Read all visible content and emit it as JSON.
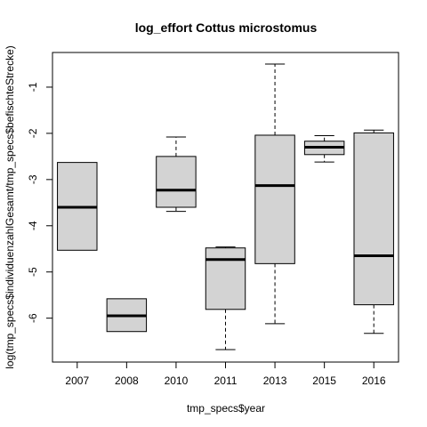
{
  "chart_data": {
    "type": "boxplot",
    "title": "log_effort Cottus microstomus",
    "xlabel": "tmp_specs$year",
    "ylabel": "log(tmp_specs$individuenzahlGesamt/tmp_specs$befischteStrecke)",
    "categories": [
      "2007",
      "2008",
      "2010",
      "2011",
      "2013",
      "2015",
      "2016"
    ],
    "yticks": [
      -6,
      -5,
      -4,
      -3,
      -2,
      -1
    ],
    "ylim": [
      -6.95,
      -0.25
    ],
    "grid": false,
    "box_fill": "#d3d3d3",
    "series": [
      {
        "values": [
          {
            "whisker_low": -4.53,
            "q1": -4.53,
            "median": -3.6,
            "q3": -2.63,
            "whisker_high": -2.63
          },
          {
            "whisker_low": -6.29,
            "q1": -6.29,
            "median": -5.95,
            "q3": -5.58,
            "whisker_high": -5.58
          },
          {
            "whisker_low": -3.69,
            "q1": -3.6,
            "median": -3.23,
            "q3": -2.5,
            "whisker_high": -2.08
          },
          {
            "whisker_low": -6.68,
            "q1": -5.81,
            "median": -4.73,
            "q3": -4.48,
            "whisker_high": -4.46
          },
          {
            "whisker_low": -6.12,
            "q1": -4.82,
            "median": -3.13,
            "q3": -2.04,
            "whisker_high": -0.5
          },
          {
            "whisker_low": -2.62,
            "q1": -2.46,
            "median": -2.3,
            "q3": -2.17,
            "whisker_high": -2.05
          },
          {
            "whisker_low": -6.33,
            "q1": -5.71,
            "median": -4.65,
            "q3": -1.99,
            "whisker_high": -1.93
          }
        ]
      }
    ]
  }
}
